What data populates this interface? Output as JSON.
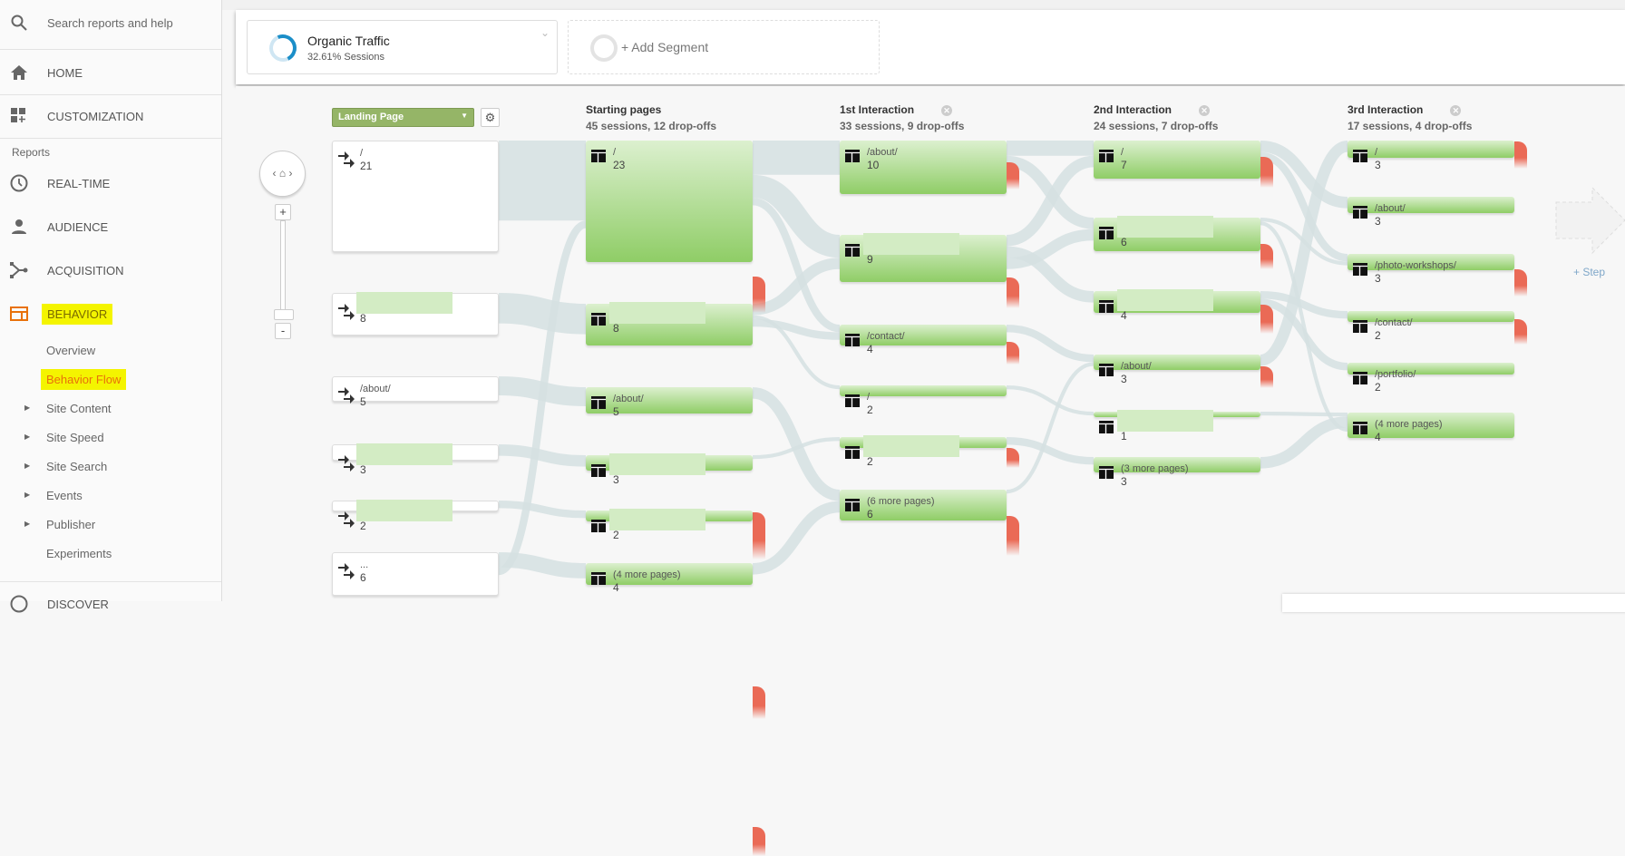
{
  "sidebar": {
    "search_placeholder": "Search reports and help",
    "home": "HOME",
    "customization": "CUSTOMIZATION",
    "reports_heading": "Reports",
    "realtime": "REAL-TIME",
    "audience": "AUDIENCE",
    "acquisition": "ACQUISITION",
    "behavior": "BEHAVIOR",
    "behavior_items": [
      "Overview",
      "Behavior Flow",
      "Site Content",
      "Site Speed",
      "Site Search",
      "Events",
      "Publisher",
      "Experiments"
    ],
    "discover": "DISCOVER",
    "active_color": "#e8710a",
    "highlight_color": "#f4f400"
  },
  "segments": {
    "active": {
      "name": "Organic Traffic",
      "detail": "32.61% Sessions"
    },
    "add_label": "+ Add Segment"
  },
  "flow": {
    "dimension_select": "Landing Page",
    "step_label": "+ Step",
    "columns": [
      {
        "title": "",
        "subtitle": "",
        "nodes": [
          {
            "label": "/",
            "count": "21"
          },
          {
            "label": "",
            "count": "8"
          },
          {
            "label": "/about/",
            "count": "5"
          },
          {
            "label": "",
            "count": "3"
          },
          {
            "label": "",
            "count": "2"
          },
          {
            "label": "...",
            "count": "6"
          }
        ]
      },
      {
        "title": "Starting pages",
        "subtitle": "45 sessions, 12 drop-offs",
        "nodes": [
          {
            "label": "/",
            "count": "23"
          },
          {
            "label": "",
            "count": "8"
          },
          {
            "label": "/about/",
            "count": "5"
          },
          {
            "label": "",
            "count": "3"
          },
          {
            "label": "",
            "count": "2"
          },
          {
            "label": "(4 more pages)",
            "count": "4"
          }
        ]
      },
      {
        "title": "1st Interaction",
        "subtitle": "33 sessions, 9 drop-offs",
        "nodes": [
          {
            "label": "/about/",
            "count": "10"
          },
          {
            "label": "",
            "count": "9"
          },
          {
            "label": "/contact/",
            "count": "4"
          },
          {
            "label": "/",
            "count": "2"
          },
          {
            "label": "",
            "count": "2"
          },
          {
            "label": "(6 more pages)",
            "count": "6"
          }
        ]
      },
      {
        "title": "2nd Interaction",
        "subtitle": "24 sessions, 7 drop-offs",
        "nodes": [
          {
            "label": "/",
            "count": "7"
          },
          {
            "label": "",
            "count": "6"
          },
          {
            "label": "",
            "count": "4"
          },
          {
            "label": "/about/",
            "count": "3"
          },
          {
            "label": "",
            "count": "1"
          },
          {
            "label": "(3 more pages)",
            "count": "3"
          }
        ]
      },
      {
        "title": "3rd Interaction",
        "subtitle": "17 sessions, 4 drop-offs",
        "nodes": [
          {
            "label": "/",
            "count": "3"
          },
          {
            "label": "/about/",
            "count": "3"
          },
          {
            "label": "/photo-workshops/",
            "count": "3"
          },
          {
            "label": "/contact/",
            "count": "2"
          },
          {
            "label": "/portfolio/",
            "count": "2"
          },
          {
            "label": "(4 more pages)",
            "count": "4"
          }
        ]
      }
    ],
    "node_color": "#8fcd66",
    "dropoff_color": "#ea6a56",
    "link_color": "#d5e0e2"
  }
}
